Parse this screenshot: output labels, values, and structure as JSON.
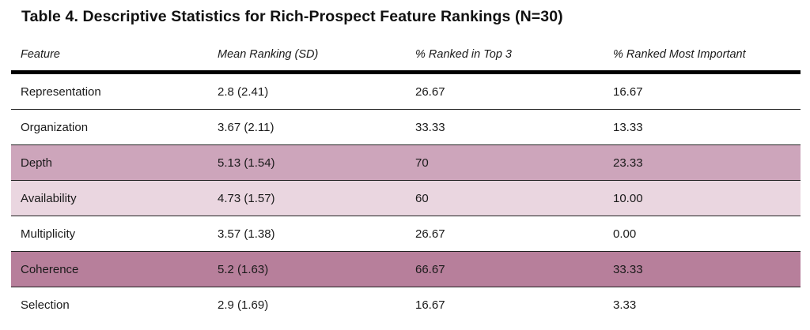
{
  "title": "Table 4. Descriptive Statistics for Rich-Prospect Feature Rankings (N=30)",
  "colors": {
    "row_depth": "#cda5bb",
    "row_availability": "#ead6e0",
    "row_coherence": "#b77f9b"
  },
  "table": {
    "headers": [
      "Feature",
      "Mean Ranking (SD)",
      "% Ranked in Top 3",
      "% Ranked Most Important"
    ],
    "rows": [
      [
        "Representation",
        "2.8 (2.41)",
        "26.67",
        "16.67"
      ],
      [
        "Organization",
        "3.67 (2.11)",
        "33.33",
        "13.33"
      ],
      [
        "Depth",
        "5.13 (1.54)",
        "70",
        "23.33"
      ],
      [
        "Availability",
        "4.73 (1.57)",
        "60",
        "10.00"
      ],
      [
        "Multiplicity",
        "3.57 (1.38)",
        "26.67",
        "0.00"
      ],
      [
        "Coherence",
        "5.2 (1.63)",
        "66.67",
        "33.33"
      ],
      [
        "Selection",
        "2.9 (1.69)",
        "16.67",
        "3.33"
      ]
    ]
  }
}
